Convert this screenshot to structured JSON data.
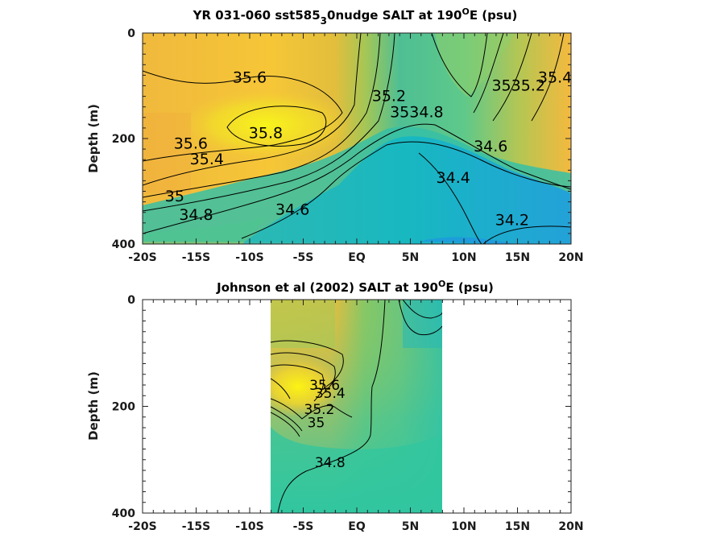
{
  "chart_data": [
    {
      "type": "heatmap",
      "title_main": "YR 031-060 sst585",
      "title_sub": "3",
      "title_rest": "0nudge SALT at 190",
      "title_sup": "O",
      "title_end": "E (psu)",
      "ylabel": "Depth (m)",
      "xlim": [
        -20,
        20
      ],
      "ylim": [
        0,
        400
      ],
      "x_ticks": [
        -20,
        -15,
        -10,
        -5,
        0,
        5,
        10,
        15,
        20
      ],
      "x_tick_labels": [
        "-20S",
        "-15S",
        "-10S",
        "-5S",
        "EQ",
        "5N",
        "10N",
        "15N",
        "20N"
      ],
      "y_ticks": [
        0,
        200,
        400
      ],
      "y_tick_labels": [
        "0",
        "200",
        "400"
      ],
      "contour_labels": [
        {
          "text": "35.6",
          "lat": -10.0,
          "depth": 85
        },
        {
          "text": "35.8",
          "lat": -8.5,
          "depth": 190
        },
        {
          "text": "35.6",
          "lat": -15.5,
          "depth": 210
        },
        {
          "text": "35.4",
          "lat": -14.0,
          "depth": 240
        },
        {
          "text": "35",
          "lat": -17.0,
          "depth": 310
        },
        {
          "text": "34.8",
          "lat": -15.0,
          "depth": 345
        },
        {
          "text": "34.6",
          "lat": -6.0,
          "depth": 335
        },
        {
          "text": "35.2",
          "lat": 3.0,
          "depth": 120
        },
        {
          "text": "35",
          "lat": 4.0,
          "depth": 150
        },
        {
          "text": "34.8",
          "lat": 6.5,
          "depth": 150
        },
        {
          "text": "34.6",
          "lat": 12.5,
          "depth": 215
        },
        {
          "text": "34.4",
          "lat": 9.0,
          "depth": 275
        },
        {
          "text": "34.2",
          "lat": 14.5,
          "depth": 355
        },
        {
          "text": "35",
          "lat": 13.5,
          "depth": 100
        },
        {
          "text": "35.2",
          "lat": 16.0,
          "depth": 100
        },
        {
          "text": "35.4",
          "lat": 18.5,
          "depth": 85
        }
      ]
    },
    {
      "type": "heatmap",
      "title_main": "Johnson et al (2002) SALT at 190",
      "title_sup": "O",
      "title_end": "E (psu)",
      "ylabel": "Depth (m)",
      "xlim": [
        -20,
        20
      ],
      "ylim": [
        0,
        400
      ],
      "data_extent_lat": [
        -8,
        8
      ],
      "x_ticks": [
        -20,
        -15,
        -10,
        -5,
        0,
        5,
        10,
        15,
        20
      ],
      "x_tick_labels": [
        "-20S",
        "-15S",
        "-10S",
        "-5S",
        "EQ",
        "5N",
        "10N",
        "15N",
        "20N"
      ],
      "y_ticks": [
        0,
        200,
        400
      ],
      "y_tick_labels": [
        "0",
        "200",
        "400"
      ],
      "contour_labels": [
        {
          "text": "34.8",
          "lat": -2.5,
          "depth": 305
        },
        {
          "text": "35",
          "lat": -3.8,
          "depth": 230
        },
        {
          "text": "35.2",
          "lat": -3.5,
          "depth": 205
        },
        {
          "text": "35.4",
          "lat": -2.5,
          "depth": 175
        },
        {
          "text": "35.6",
          "lat": -3.0,
          "depth": 160
        }
      ]
    }
  ]
}
